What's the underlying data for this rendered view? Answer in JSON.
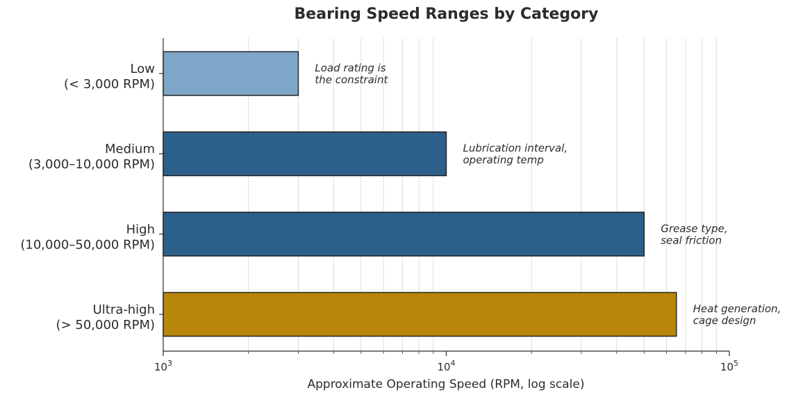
{
  "chart_data": {
    "type": "bar",
    "orientation": "horizontal",
    "title": "Bearing Speed Ranges by Category",
    "xlabel": "Approximate Operating Speed (RPM, log scale)",
    "ylabel": "",
    "x_scale": "log",
    "xlim": [
      1000,
      100000
    ],
    "x_ticks": [
      1000,
      10000,
      100000
    ],
    "x_tick_labels": [
      {
        "base": "10",
        "exp": "3"
      },
      {
        "base": "10",
        "exp": "4"
      },
      {
        "base": "10",
        "exp": "5"
      }
    ],
    "grid": "vertical minor gridlines",
    "categories": [
      {
        "line1": "Low",
        "line2": "(< 3,000 RPM)"
      },
      {
        "line1": "Medium",
        "line2": "(3,000–10,000 RPM)"
      },
      {
        "line1": "High",
        "line2": "(10,000–50,000 RPM)"
      },
      {
        "line1": "Ultra-high",
        "line2": "(> 50,000 RPM)"
      }
    ],
    "values": [
      3000,
      10000,
      50000,
      65000
    ],
    "colors": [
      "#7fa7c9",
      "#2c5f8a",
      "#2c5f8a",
      "#b8860b"
    ],
    "annotations": [
      {
        "line1": "Load rating is",
        "line2": "the constraint"
      },
      {
        "line1": "Lubrication interval,",
        "line2": "operating temp"
      },
      {
        "line1": "Grease type,",
        "line2": "seal friction"
      },
      {
        "line1": "Heat generation,",
        "line2": "cage design"
      }
    ]
  }
}
